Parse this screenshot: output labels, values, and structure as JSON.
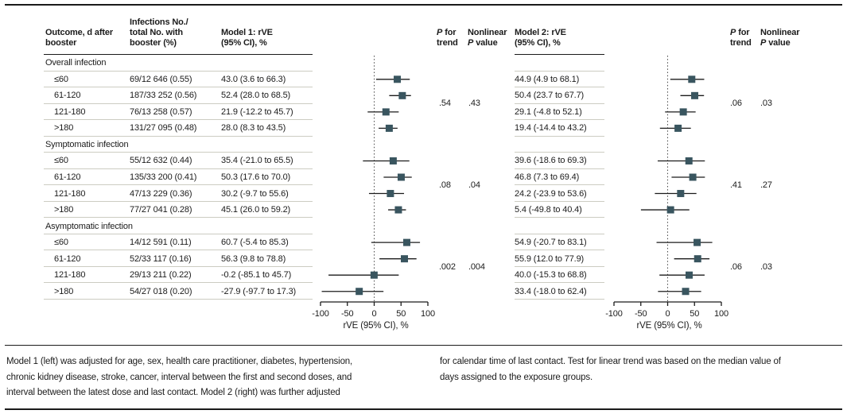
{
  "colors": {
    "marker": "#39555f",
    "rule_light": "#ccccc2",
    "text": "#1b1b1b"
  },
  "figure": {
    "headers": {
      "outcome1": "Outcome, d after",
      "outcome2": "booster",
      "infections1": "Infections No./",
      "infections2": "total No. with",
      "infections3": "booster (%)",
      "model1_1": "Model 1: rVE",
      "model1_2": "(95% CI), %",
      "model2_1": "Model 2: rVE",
      "model2_2": "(95% CI), %",
      "p": "P",
      "p_for_rest": "for",
      "trend": "trend",
      "nonlinear": "Nonlinear",
      "p_value_rest": "value"
    },
    "rows": [
      {
        "label": "Overall infection"
      },
      {
        "outcome": "≤60",
        "infections": "69/12 646 (0.55)",
        "model1": "43.0 (3.6 to 66.3)",
        "model2": "44.9 (4.9 to 68.1)"
      },
      {
        "outcome": "61-120",
        "infections": "187/33 252 (0.56)",
        "model1": "52.4 (28.0 to 68.5)",
        "model2": "50.4 (23.7 to 67.7)"
      },
      {
        "outcome": "121-180",
        "infections": "76/13 258 (0.57)",
        "model1": "21.9 (-12.2 to 45.7)",
        "model2": "29.1 (-4.8 to 52.1)"
      },
      {
        "outcome": ">180",
        "infections": "131/27 095 (0.48)",
        "model1": "28.0 (8.3 to 43.5)",
        "model2": "19.4 (-14.4 to 43.2)"
      },
      {
        "label": "Symptomatic infection"
      },
      {
        "outcome": "≤60",
        "infections": "55/12 632 (0.44)",
        "model1": "35.4 (-21.0 to 65.5)",
        "model2": "39.6 (-18.6 to 69.3)"
      },
      {
        "outcome": "61-120",
        "infections": "135/33 200 (0.41)",
        "model1": "50.3 (17.6 to 70.0)",
        "model2": "46.8 (7.3 to 69.4)"
      },
      {
        "outcome": "121-180",
        "infections": "47/13 229 (0.36)",
        "model1": "30.2 (-9.7 to 55.6)",
        "model2": "24.2 (-23.9 to 53.6)"
      },
      {
        "outcome": ">180",
        "infections": "77/27 041 (0.28)",
        "model1": "45.1 (26.0 to 59.2)",
        "model2": "5.4 (-49.8 to 40.4)"
      },
      {
        "label": "Asymptomatic infection"
      },
      {
        "outcome": "≤60",
        "infections": "14/12 591 (0.11)",
        "model1": "60.7 (-5.4 to 85.3)",
        "model2": "54.9 (-20.7 to 83.1)"
      },
      {
        "outcome": "61-120",
        "infections": "52/33 117 (0.16)",
        "model1": "56.3 (9.8 to 78.8)",
        "model2": "55.9 (12.0 to 77.9)"
      },
      {
        "outcome": "121-180",
        "infections": "29/13 211 (0.22)",
        "model1": "-0.2 (-85.1 to 45.7)",
        "model2": "40.0 (-15.3 to 68.8)"
      },
      {
        "outcome": ">180",
        "infections": "54/27 018 (0.20)",
        "model1": "-27.9 (-97.7 to 17.3)",
        "model2": "33.4 (-18.0 to 62.4)"
      }
    ]
  },
  "chart_data": [
    {
      "type": "forest",
      "name": "Model 1: rVE (95% CI), %",
      "xlabel": "rVE (95% CI), %",
      "xlim": [
        -100,
        100
      ],
      "xticks": [
        -100,
        -50,
        0,
        50,
        100
      ],
      "refline": 0,
      "groups": [
        {
          "name": "Overall infection",
          "p_trend": ".54",
          "p_nonlinear": ".43",
          "points": [
            {
              "label": "≤60",
              "est": 43.0,
              "lo": 3.6,
              "hi": 66.3
            },
            {
              "label": "61-120",
              "est": 52.4,
              "lo": 28.0,
              "hi": 68.5
            },
            {
              "label": "121-180",
              "est": 21.9,
              "lo": -12.2,
              "hi": 45.7
            },
            {
              "label": ">180",
              "est": 28.0,
              "lo": 8.3,
              "hi": 43.5
            }
          ]
        },
        {
          "name": "Symptomatic infection",
          "p_trend": ".08",
          "p_nonlinear": ".04",
          "points": [
            {
              "label": "≤60",
              "est": 35.4,
              "lo": -21.0,
              "hi": 65.5
            },
            {
              "label": "61-120",
              "est": 50.3,
              "lo": 17.6,
              "hi": 70.0
            },
            {
              "label": "121-180",
              "est": 30.2,
              "lo": -9.7,
              "hi": 55.6
            },
            {
              "label": ">180",
              "est": 45.1,
              "lo": 26.0,
              "hi": 59.2
            }
          ]
        },
        {
          "name": "Asymptomatic infection",
          "p_trend": ".002",
          "p_nonlinear": ".004",
          "points": [
            {
              "label": "≤60",
              "est": 60.7,
              "lo": -5.4,
              "hi": 85.3
            },
            {
              "label": "61-120",
              "est": 56.3,
              "lo": 9.8,
              "hi": 78.8
            },
            {
              "label": "121-180",
              "est": -0.2,
              "lo": -85.1,
              "hi": 45.7
            },
            {
              "label": ">180",
              "est": -27.9,
              "lo": -97.7,
              "hi": 17.3
            }
          ]
        }
      ]
    },
    {
      "type": "forest",
      "name": "Model 2: rVE (95% CI), %",
      "xlabel": "rVE (95% CI), %",
      "xlim": [
        -100,
        100
      ],
      "xticks": [
        -100,
        -50,
        0,
        50,
        100
      ],
      "refline": 0,
      "groups": [
        {
          "name": "Overall infection",
          "p_trend": ".06",
          "p_nonlinear": ".03",
          "points": [
            {
              "label": "≤60",
              "est": 44.9,
              "lo": 4.9,
              "hi": 68.1
            },
            {
              "label": "61-120",
              "est": 50.4,
              "lo": 23.7,
              "hi": 67.7
            },
            {
              "label": "121-180",
              "est": 29.1,
              "lo": -4.8,
              "hi": 52.1
            },
            {
              "label": ">180",
              "est": 19.4,
              "lo": -14.4,
              "hi": 43.2
            }
          ]
        },
        {
          "name": "Symptomatic infection",
          "p_trend": ".41",
          "p_nonlinear": ".27",
          "points": [
            {
              "label": "≤60",
              "est": 39.6,
              "lo": -18.6,
              "hi": 69.3
            },
            {
              "label": "61-120",
              "est": 46.8,
              "lo": 7.3,
              "hi": 69.4
            },
            {
              "label": "121-180",
              "est": 24.2,
              "lo": -23.9,
              "hi": 53.6
            },
            {
              "label": ">180",
              "est": 5.4,
              "lo": -49.8,
              "hi": 40.4
            }
          ]
        },
        {
          "name": "Asymptomatic infection",
          "p_trend": ".06",
          "p_nonlinear": ".03",
          "points": [
            {
              "label": "≤60",
              "est": 54.9,
              "lo": -20.7,
              "hi": 83.1
            },
            {
              "label": "61-120",
              "est": 55.9,
              "lo": 12.0,
              "hi": 77.9
            },
            {
              "label": "121-180",
              "est": 40.0,
              "lo": -15.3,
              "hi": 68.8
            },
            {
              "label": ">180",
              "est": 33.4,
              "lo": -18.0,
              "hi": 62.4
            }
          ]
        }
      ]
    }
  ],
  "footnote": {
    "col1_line1": "Model 1 (left) was adjusted for age, sex, health care practitioner, diabetes, hypertension,",
    "col1_line2": "chronic kidney disease, stroke, cancer, interval between the first and second doses, and",
    "col1_line3": "interval between the latest dose and last contact. Model 2 (right) was further adjusted",
    "col2_line1": "for calendar time of last contact. Test for linear trend was based on the median value of",
    "col2_line2": "days assigned to the exposure groups."
  }
}
